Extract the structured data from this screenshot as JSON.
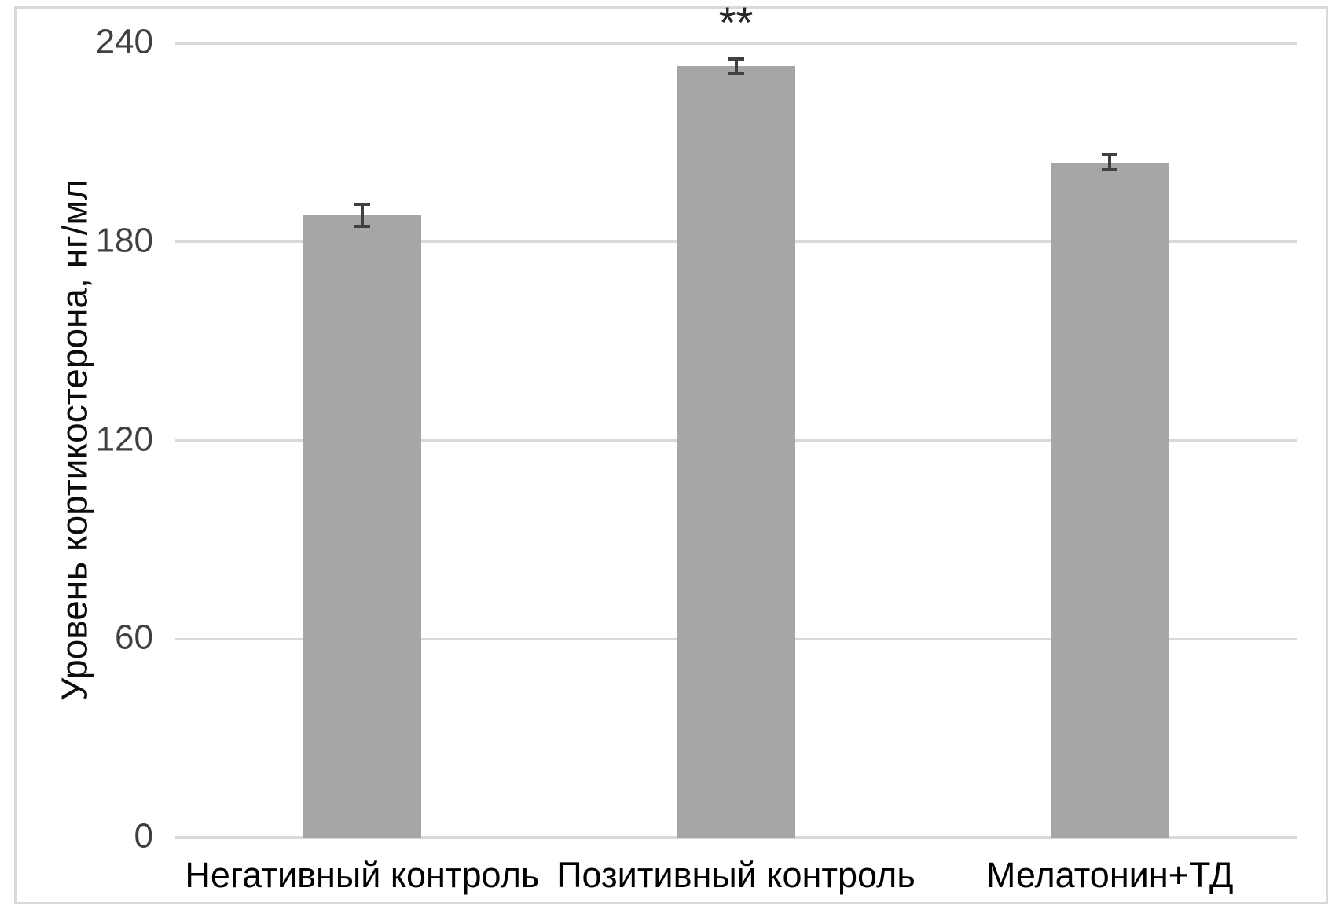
{
  "figure": {
    "background_color": "#ffffff",
    "border_color": "#d9d9d9"
  },
  "chart_data": {
    "type": "bar",
    "title": "",
    "xlabel": "",
    "ylabel": "Уровень кортикостерона, нг/мл",
    "categories": [
      "Негативный контроль",
      "Позитивный контроль",
      "Мелатонин+ТД"
    ],
    "values": [
      188,
      233,
      204
    ],
    "errors": [
      3,
      2,
      2
    ],
    "annotations": [
      "",
      "**",
      ""
    ],
    "yticks": [
      0,
      60,
      120,
      180,
      240
    ],
    "ylim": [
      0,
      240
    ],
    "grid": true,
    "legend": "none",
    "bar_color": "#a6a6a6",
    "error_bar_color": "#404040",
    "gridline_color": "#d9d9d9",
    "ytick_color": "#404040",
    "xlabel_color": "#000000",
    "ylabel_color": "#0d0d0d",
    "annotation_color": "#262626"
  }
}
